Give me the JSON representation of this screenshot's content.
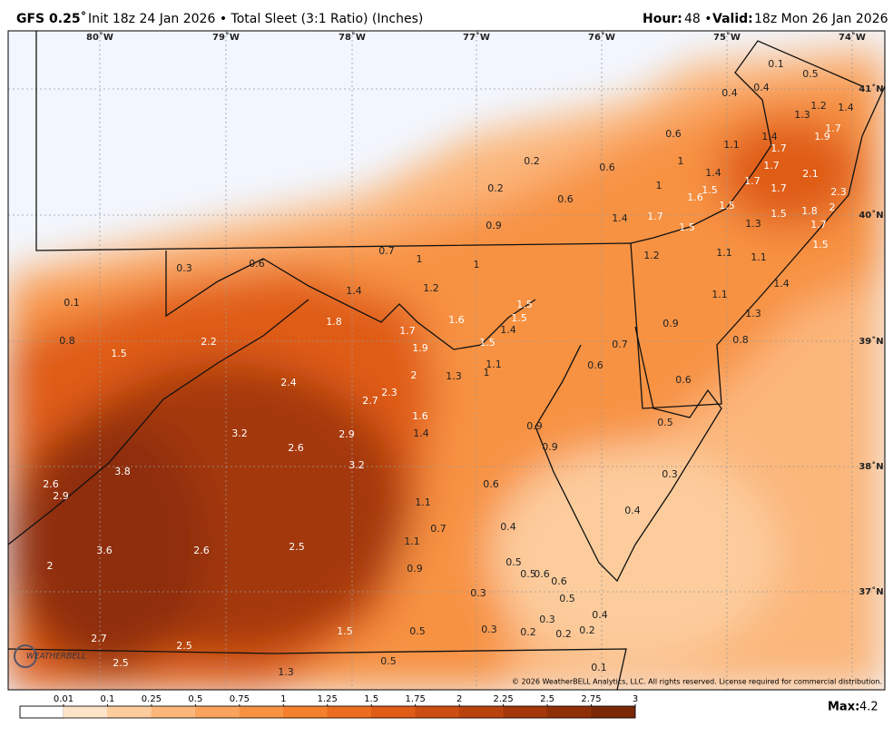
{
  "header": {
    "model": "GFS 0.25˚",
    "description": "Init 18z 24 Jan 2026 • Total Sleet (3:1 Ratio) (Inches)",
    "hour_label": "Hour:",
    "hour": "48 •",
    "valid_label": "Valid:",
    "valid": "18z Mon 26 Jan 2026"
  },
  "map": {
    "longitudes": [
      "80˚W",
      "79˚W",
      "78˚W",
      "77˚W",
      "76˚W",
      "75˚W",
      "74˚W"
    ],
    "latitudes": [
      "41˚N",
      "40˚N",
      "39˚N",
      "38˚N",
      "37˚N"
    ],
    "point_values": [
      0.1,
      0.5,
      0.4,
      0.4,
      1.3,
      1.2,
      1.4,
      0.6,
      1.4,
      1.1,
      1.7,
      1.9,
      1.7,
      0.2,
      0.6,
      1.0,
      1.4,
      1.7,
      2.1,
      0.2,
      0.6,
      1.0,
      1.5,
      1.7,
      1.7,
      2.3,
      1.6,
      1.5,
      2.0,
      1.8,
      1.4,
      1.7,
      1.5,
      1.3,
      1.7,
      0.9,
      1.5,
      1.5,
      0.7,
      1.0,
      1.0,
      1.2,
      1.1,
      1.1,
      0.3,
      0.6,
      1.4,
      1.2,
      1.4,
      1.1,
      0.1,
      1.5,
      1.6,
      1.5,
      1.8,
      1.4,
      1.7,
      1.3,
      0.9,
      0.8,
      2.2,
      1.9,
      1.5,
      0.7,
      0.8,
      1.5,
      1.1,
      0.6,
      1.0,
      2.0,
      1.3,
      0.6,
      2.4,
      2.7,
      2.3,
      1.6,
      0.5,
      1.4,
      3.2,
      2.9,
      0.9,
      0.9,
      2.6,
      3.2,
      3.8,
      0.3,
      2.6,
      0.6,
      2.9,
      1.1,
      0.4,
      0.7,
      0.4,
      1.1,
      3.6,
      2.6,
      2.5,
      2.0,
      0.9,
      0.5,
      0.5,
      0.6,
      0.6,
      0.3,
      0.5,
      0.4,
      0.3,
      1.5,
      0.5,
      0.3,
      0.2,
      0.2,
      0.2,
      2.7,
      2.5,
      2.5,
      0.5,
      0.1,
      1.3
    ],
    "logo": "WEATHERBELL",
    "copyright": "© 2026 WeatherBELL Analytics, LLC. All rights reserved. License required for commercial distribution."
  },
  "colorbar": {
    "ticks": [
      0.01,
      0.1,
      0.25,
      0.5,
      0.75,
      1,
      1.25,
      1.5,
      1.75,
      2,
      2.25,
      2.5,
      2.75,
      3
    ],
    "colors": [
      "#ffffff",
      "#fde3c8",
      "#fccc9c",
      "#fbb67a",
      "#f9a35c",
      "#f79243",
      "#f4802d",
      "#ec6d1f",
      "#df5b16",
      "#cd4e12",
      "#b9420d",
      "#a4380a",
      "#8f2f08",
      "#7a2806"
    ]
  },
  "max_label": "Max:",
  "max_value": 4.2
}
